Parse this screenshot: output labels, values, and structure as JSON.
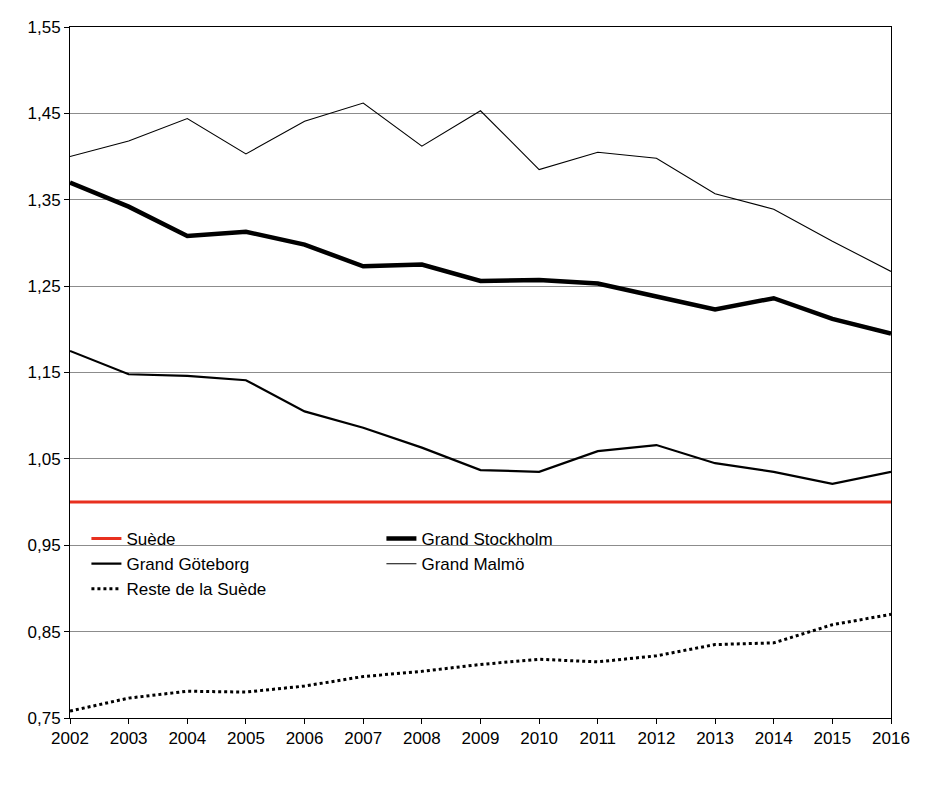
{
  "chart_data": {
    "type": "line",
    "x": [
      2002,
      2003,
      2004,
      2005,
      2006,
      2007,
      2008,
      2009,
      2010,
      2011,
      2012,
      2013,
      2014,
      2015,
      2016
    ],
    "series": [
      {
        "name": "Suède",
        "color": "#e8301f",
        "line_style": "solid",
        "values": [
          1.0,
          1.0,
          1.0,
          1.0,
          1.0,
          1.0,
          1.0,
          1.0,
          1.0,
          1.0,
          1.0,
          1.0,
          1.0,
          1.0,
          1.0
        ]
      },
      {
        "name": "Grand Stockholm",
        "color": "#000000",
        "line_style": "thick",
        "values": [
          1.37,
          1.342,
          1.308,
          1.313,
          1.298,
          1.273,
          1.275,
          1.256,
          1.257,
          1.253,
          1.238,
          1.223,
          1.236,
          1.212,
          1.195
        ]
      },
      {
        "name": "Grand Göteborg",
        "color": "#000000",
        "line_style": "medium",
        "values": [
          1.175,
          1.148,
          1.146,
          1.141,
          1.105,
          1.086,
          1.063,
          1.037,
          1.035,
          1.059,
          1.066,
          1.045,
          1.035,
          1.021,
          1.035
        ]
      },
      {
        "name": "Grand Malmö",
        "color": "#000000",
        "line_style": "thin",
        "values": [
          1.4,
          1.418,
          1.444,
          1.403,
          1.441,
          1.462,
          1.412,
          1.453,
          1.385,
          1.405,
          1.398,
          1.357,
          1.339,
          1.302,
          1.267
        ]
      },
      {
        "name": "Reste de la Suède",
        "color": "#000000",
        "line_style": "dotted",
        "values": [
          0.758,
          0.773,
          0.781,
          0.78,
          0.787,
          0.798,
          0.804,
          0.812,
          0.818,
          0.815,
          0.822,
          0.835,
          0.837,
          0.858,
          0.87
        ]
      }
    ],
    "xlim": [
      2002,
      2016
    ],
    "xticks": [
      2002,
      2003,
      2004,
      2005,
      2006,
      2007,
      2008,
      2009,
      2010,
      2011,
      2012,
      2013,
      2014,
      2015,
      2016
    ],
    "ylim": [
      0.75,
      1.55
    ],
    "yticks": [
      {
        "value": 0.75,
        "label": "0,75"
      },
      {
        "value": 0.85,
        "label": "0,85"
      },
      {
        "value": 0.95,
        "label": "0,95"
      },
      {
        "value": 1.05,
        "label": "1,05"
      },
      {
        "value": 1.15,
        "label": "1,15"
      },
      {
        "value": 1.25,
        "label": "1,25"
      },
      {
        "value": 1.35,
        "label": "1,35"
      },
      {
        "value": 1.45,
        "label": "1,45"
      },
      {
        "value": 1.55,
        "label": "1,55"
      }
    ],
    "grid": true,
    "legend": "left"
  }
}
